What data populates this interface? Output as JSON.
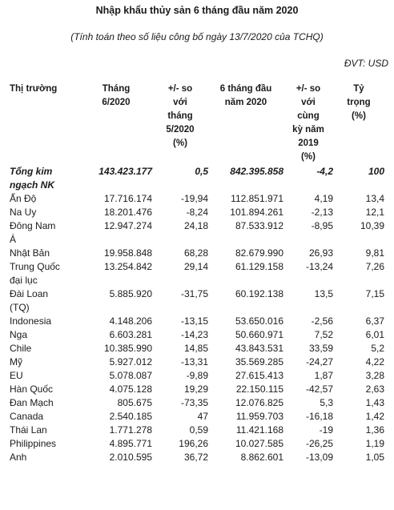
{
  "title": "Nhập khẩu thủy sản 6 tháng đầu năm 2020",
  "subtitle": "(Tính toán theo số liệu công bố ngày 13/7/2020 của TCHQ)",
  "unit": "ĐVT: USD",
  "headers": [
    [
      "Thị trường"
    ],
    [
      "Tháng",
      "6/2020"
    ],
    [
      "+/- so",
      "với",
      "tháng",
      "5/2020",
      "(%)"
    ],
    [
      "6 tháng đầu",
      "năm 2020"
    ],
    [
      "+/- so",
      "với",
      "cùng",
      "kỳ năm",
      "2019",
      "(%)"
    ],
    [
      "Tỷ",
      "trọng",
      "(%)"
    ]
  ],
  "total": {
    "market": [
      "Tổng kim",
      "ngạch NK"
    ],
    "m6": "143.423.177",
    "chg_m5": "0,5",
    "h1": "842.395.858",
    "chg_yoy": "-4,2",
    "share": "100"
  },
  "rows": [
    {
      "market": [
        "Ấn Độ"
      ],
      "m6": "17.716.174",
      "chg_m5": "-19,94",
      "h1": "112.851.971",
      "chg_yoy": "4,19",
      "share": "13,4"
    },
    {
      "market": [
        "Na Uy"
      ],
      "m6": "18.201.476",
      "chg_m5": "-8,24",
      "h1": "101.894.261",
      "chg_yoy": "-2,13",
      "share": "12,1"
    },
    {
      "market": [
        "Đông Nam",
        "Á"
      ],
      "m6": "12.947.274",
      "chg_m5": "24,18",
      "h1": "87.533.912",
      "chg_yoy": "-8,95",
      "share": "10,39"
    },
    {
      "market": [
        "Nhật Bản"
      ],
      "m6": "19.958.848",
      "chg_m5": "68,28",
      "h1": "82.679.990",
      "chg_yoy": "26,93",
      "share": "9,81"
    },
    {
      "market": [
        "Trung Quốc",
        "đại lục"
      ],
      "m6": "13.254.842",
      "chg_m5": "29,14",
      "h1": "61.129.158",
      "chg_yoy": "-13,24",
      "share": "7,26"
    },
    {
      "market": [
        "Đài Loan",
        "(TQ)"
      ],
      "m6": "5.885.920",
      "chg_m5": "-31,75",
      "h1": "60.192.138",
      "chg_yoy": "13,5",
      "share": "7,15"
    },
    {
      "market": [
        "Indonesia"
      ],
      "m6": "4.148.206",
      "chg_m5": "-13,15",
      "h1": "53.650.016",
      "chg_yoy": "-2,56",
      "share": "6,37"
    },
    {
      "market": [
        "Nga"
      ],
      "m6": "6.603.281",
      "chg_m5": "-14,23",
      "h1": "50.660.971",
      "chg_yoy": "7,52",
      "share": "6,01"
    },
    {
      "market": [
        "Chile"
      ],
      "m6": "10.385.990",
      "chg_m5": "14,85",
      "h1": "43.843.531",
      "chg_yoy": "33,59",
      "share": "5,2"
    },
    {
      "market": [
        "Mỹ"
      ],
      "m6": "5.927.012",
      "chg_m5": "-13,31",
      "h1": "35.569.285",
      "chg_yoy": "-24,27",
      "share": "4,22"
    },
    {
      "market": [
        "EU"
      ],
      "m6": "5.078.087",
      "chg_m5": "-9,89",
      "h1": "27.615.413",
      "chg_yoy": "1,87",
      "share": "3,28"
    },
    {
      "market": [
        "Hàn Quốc"
      ],
      "m6": "4.075.128",
      "chg_m5": "19,29",
      "h1": "22.150.115",
      "chg_yoy": "-42,57",
      "share": "2,63"
    },
    {
      "market": [
        "Đan Mạch"
      ],
      "m6": "805.675",
      "chg_m5": "-73,35",
      "h1": "12.076.825",
      "chg_yoy": "5,3",
      "share": "1,43"
    },
    {
      "market": [
        "Canada"
      ],
      "m6": "2.540.185",
      "chg_m5": "47",
      "h1": "11.959.703",
      "chg_yoy": "-16,18",
      "share": "1,42"
    },
    {
      "market": [
        "Thái Lan"
      ],
      "m6": "1.771.278",
      "chg_m5": "0,59",
      "h1": "11.421.168",
      "chg_yoy": "-19",
      "share": "1,36"
    },
    {
      "market": [
        "Philippines"
      ],
      "m6": "4.895.771",
      "chg_m5": "196,26",
      "h1": "10.027.585",
      "chg_yoy": "-26,25",
      "share": "1,19"
    },
    {
      "market": [
        "Anh"
      ],
      "m6": "2.010.595",
      "chg_m5": "36,72",
      "h1": "8.862.601",
      "chg_yoy": "-13,09",
      "share": "1,05"
    }
  ]
}
